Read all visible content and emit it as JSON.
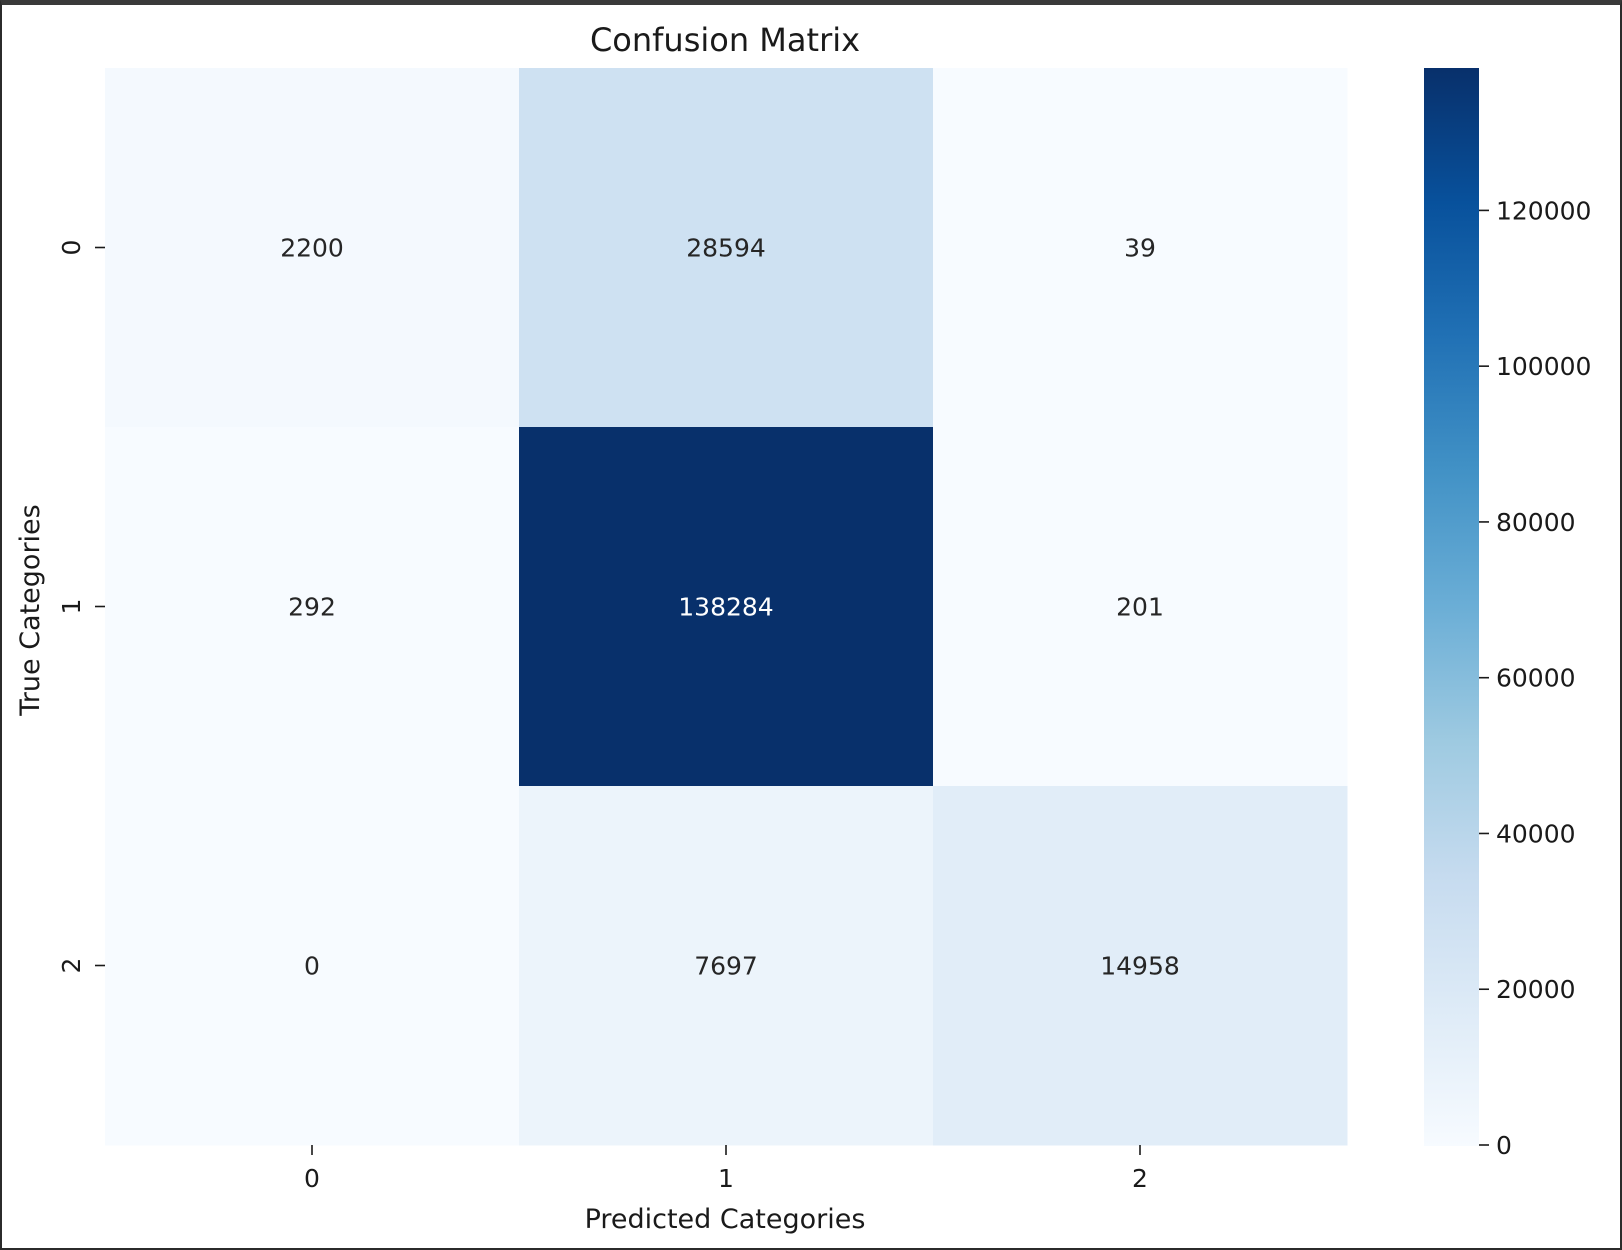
{
  "chart_data": {
    "type": "heatmap",
    "title": "Confusion Matrix",
    "xlabel": "Predicted Categories",
    "ylabel": "True Categories",
    "x_categories": [
      "0",
      "1",
      "2"
    ],
    "y_categories": [
      "0",
      "1",
      "2"
    ],
    "matrix": [
      [
        2200,
        28594,
        39
      ],
      [
        292,
        138284,
        201
      ],
      [
        0,
        7697,
        14958
      ]
    ],
    "colormap": "Blues",
    "colorbar": {
      "min": 0,
      "max": 138284,
      "ticks": [
        0,
        20000,
        40000,
        60000,
        80000,
        100000,
        120000
      ],
      "tick_labels": [
        "0",
        "20000",
        "40000",
        "60000",
        "80000",
        "100000",
        "120000"
      ]
    },
    "grid": false
  }
}
